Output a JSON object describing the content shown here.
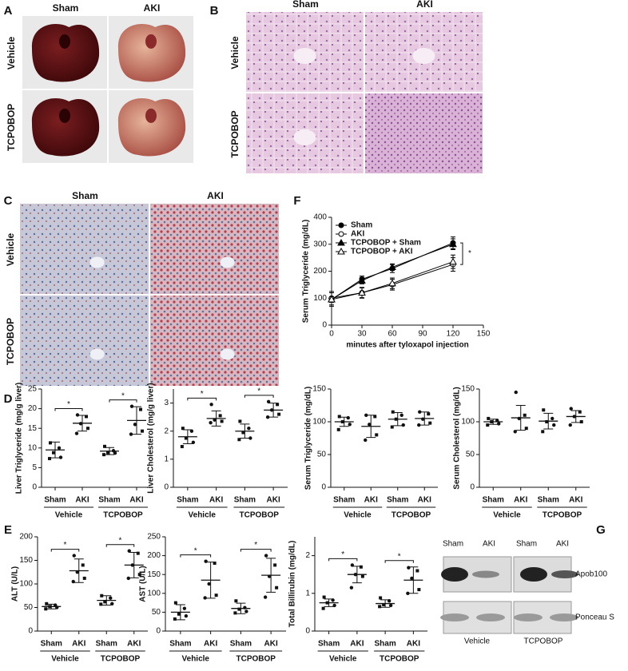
{
  "panel_labels": [
    "A",
    "B",
    "C",
    "D",
    "E",
    "F",
    "G"
  ],
  "panel_a": {
    "columns": [
      "Sham",
      "AKI"
    ],
    "rows": [
      "Vehicle",
      "TCPOBOP"
    ]
  },
  "panel_b": {
    "columns": [
      "Sham",
      "AKI"
    ],
    "rows": [
      "Vehicle",
      "TCPOBOP"
    ]
  },
  "panel_c": {
    "columns": [
      "Sham",
      "AKI"
    ],
    "rows": [
      "Vehicle",
      "TCPOBOP"
    ]
  },
  "blot": {
    "lanes": [
      "Sham",
      "AKI",
      "Sham",
      "AKI"
    ],
    "rows": [
      "Apob100",
      "Ponceau S"
    ],
    "groups": [
      "Vehicle",
      "TCPOBOP"
    ]
  },
  "chart_data": [
    {
      "type": "line",
      "ylabel": "Serum Triglyceride (mg/dL)",
      "xlabel": "minutes after tyloxapol injection",
      "x": [
        0,
        30,
        60,
        120
      ],
      "xlim": [
        0,
        150
      ],
      "xticks": [
        0,
        30,
        60,
        90,
        120,
        150
      ],
      "ylim": [
        0,
        400
      ],
      "yticks": [
        0,
        100,
        200,
        300,
        400
      ],
      "annotation": "*",
      "series": [
        {
          "name": "Sham",
          "color": "#000000",
          "marker": "circle",
          "filled": true,
          "values": [
            95,
            170,
            210,
            305
          ],
          "errors": [
            10,
            12,
            15,
            22
          ]
        },
        {
          "name": "AKI",
          "color": "#000000",
          "marker": "circle",
          "filled": false,
          "values": [
            100,
            120,
            150,
            225
          ],
          "errors": [
            25,
            20,
            20,
            25
          ]
        },
        {
          "name": "TCPOBOP + Sham",
          "color": "#000000",
          "marker": "triangle",
          "filled": true,
          "values": [
            95,
            165,
            215,
            300
          ],
          "errors": [
            10,
            12,
            12,
            20
          ]
        },
        {
          "name": "TCPOBOP + AKI",
          "color": "#000000",
          "marker": "triangle",
          "filled": false,
          "values": [
            95,
            120,
            155,
            235
          ],
          "errors": [
            25,
            18,
            20,
            25
          ]
        }
      ]
    },
    {
      "type": "dotplot",
      "ylabel": "Liver Triglyceride (mg/g liver)",
      "categories": [
        "Sham",
        "AKI",
        "Sham",
        "AKI"
      ],
      "groups": [
        "Vehicle",
        "TCPOBOP"
      ],
      "ylim": [
        0,
        25
      ],
      "yticks": [
        0,
        5,
        10,
        15,
        20,
        25
      ],
      "significance": [
        "*",
        "*"
      ],
      "points": [
        [
          11.3,
          10,
          8.8,
          7.6,
          7.3
        ],
        [
          18.4,
          18,
          16.2,
          15,
          13.7
        ],
        [
          10.4,
          9.3,
          8.8,
          8.7,
          8.3
        ],
        [
          20.6,
          19.8,
          16,
          14.3,
          13.5
        ]
      ],
      "means": [
        9.5,
        16.3,
        9.2,
        17
      ],
      "sd": [
        2,
        2,
        0.9,
        3.5
      ]
    },
    {
      "type": "dotplot",
      "ylabel": "Liver Cholesterol (mg/g liver)",
      "categories": [
        "Sham",
        "AKI",
        "Sham",
        "AKI"
      ],
      "groups": [
        "Vehicle",
        "TCPOBOP"
      ],
      "ylim": [
        0,
        3.5
      ],
      "yticks": [
        0,
        1,
        2,
        3
      ],
      "significance": [
        "*",
        "*"
      ],
      "points": [
        [
          2.1,
          2.0,
          1.75,
          1.6,
          1.45
        ],
        [
          2.95,
          2.55,
          2.4,
          2.35,
          2.3
        ],
        [
          2.35,
          2.1,
          1.95,
          1.75,
          1.7
        ],
        [
          3.05,
          2.95,
          2.75,
          2.6,
          2.5
        ]
      ],
      "means": [
        1.8,
        2.45,
        2.0,
        2.75
      ],
      "sd": [
        0.25,
        0.27,
        0.25,
        0.25
      ]
    },
    {
      "type": "dotplot",
      "ylabel": "Serum Triglyceride (mg/dL)",
      "categories": [
        "Sham",
        "AKI",
        "Sham",
        "AKI"
      ],
      "groups": [
        "Vehicle",
        "TCPOBOP"
      ],
      "ylim": [
        0,
        150
      ],
      "yticks": [
        0,
        50,
        100,
        150
      ],
      "points": [
        [
          108,
          106,
          100,
          96,
          88
        ],
        [
          110,
          108,
          96,
          80,
          72
        ],
        [
          115,
          110,
          104,
          95,
          92
        ],
        [
          115,
          112,
          104,
          98,
          95
        ]
      ],
      "means": [
        100,
        93,
        104,
        105
      ],
      "sd": [
        7,
        17,
        10,
        10
      ]
    },
    {
      "type": "dotplot",
      "ylabel": "Serum Cholesterol (mg/dL)",
      "categories": [
        "Sham",
        "AKI",
        "Sham",
        "AKI"
      ],
      "groups": [
        "Vehicle",
        "TCPOBOP"
      ],
      "ylim": [
        0,
        150
      ],
      "yticks": [
        0,
        50,
        100,
        150
      ],
      "points": [
        [
          105,
          102,
          100,
          97,
          95
        ],
        [
          145,
          110,
          105,
          90,
          85
        ],
        [
          118,
          105,
          100,
          95,
          85
        ],
        [
          120,
          115,
          108,
          100,
          95
        ]
      ],
      "means": [
        100,
        106,
        101,
        108
      ],
      "sd": [
        4,
        19,
        12,
        9
      ]
    },
    {
      "type": "dotplot",
      "ylabel": "ALT (U/L)",
      "categories": [
        "Sham",
        "AKI",
        "Sham",
        "AKI"
      ],
      "groups": [
        "Vehicle",
        "TCPOBOP"
      ],
      "ylim": [
        0,
        200
      ],
      "yticks": [
        0,
        50,
        100,
        150,
        200
      ],
      "significance": [
        "*",
        "*"
      ],
      "points": [
        [
          58,
          55,
          52,
          50,
          47
        ],
        [
          160,
          140,
          125,
          112,
          105
        ],
        [
          75,
          70,
          62,
          58,
          57
        ],
        [
          170,
          165,
          140,
          120,
          112
        ]
      ],
      "means": [
        52,
        128,
        65,
        140
      ],
      "sd": [
        5,
        25,
        10,
        27
      ]
    },
    {
      "type": "dotplot",
      "ylabel": "AST (U/L)",
      "categories": [
        "Sham",
        "AKI",
        "Sham",
        "AKI"
      ],
      "groups": [
        "Vehicle",
        "TCPOBOP"
      ],
      "ylim": [
        0,
        250
      ],
      "yticks": [
        0,
        50,
        100,
        150,
        200,
        250
      ],
      "significance": [
        "*",
        "*"
      ],
      "points": [
        [
          75,
          60,
          45,
          40,
          32
        ],
        [
          185,
          180,
          125,
          95,
          88
        ],
        [
          80,
          62,
          58,
          52,
          48
        ],
        [
          200,
          175,
          145,
          115,
          90
        ]
      ],
      "means": [
        50,
        135,
        60,
        148
      ],
      "sd": [
        20,
        48,
        14,
        45
      ]
    },
    {
      "type": "dotplot",
      "ylabel": "Total Billirubin (mg/dL)",
      "categories": [
        "Sham",
        "AKI",
        "Sham",
        "AKI"
      ],
      "groups": [
        "Vehicle",
        "TCPOBOP"
      ],
      "ylim": [
        0,
        2.5
      ],
      "yticks": [
        0,
        1,
        2
      ],
      "significance": [
        "*",
        "*"
      ],
      "points": [
        [
          0.9,
          0.82,
          0.75,
          0.68,
          0.6
        ],
        [
          1.75,
          1.7,
          1.5,
          1.45,
          1.15
        ],
        [
          0.88,
          0.8,
          0.7,
          0.68,
          0.65
        ],
        [
          1.68,
          1.6,
          1.4,
          1.1,
          1.0
        ]
      ],
      "means": [
        0.75,
        1.5,
        0.73,
        1.35
      ],
      "sd": [
        0.1,
        0.22,
        0.1,
        0.35
      ]
    }
  ]
}
